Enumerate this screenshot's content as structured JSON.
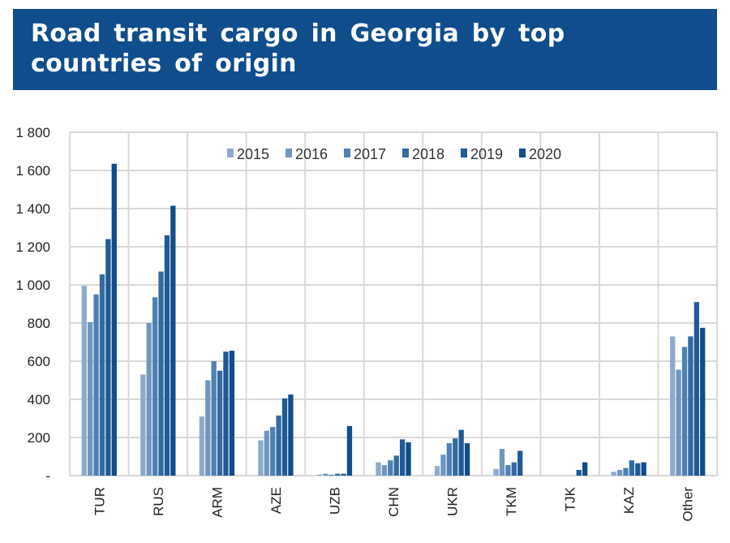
{
  "header": {
    "title_line1": "Road transit cargo in Georgia by top",
    "title_line2": "countries of origin"
  },
  "colors": {
    "banner": "#0f4d8c",
    "grid": "#d9d9d9",
    "series": [
      "#8eaacb",
      "#6f96c0",
      "#4f80b3",
      "#336aa0",
      "#1f5a96",
      "#0f4d8c"
    ]
  },
  "chart_data": {
    "type": "bar",
    "title": "Road transit cargo in Georgia by top countries of origin",
    "xlabel": "",
    "ylabel": "",
    "ylim": [
      0,
      1800
    ],
    "yticks": [
      0,
      200,
      400,
      600,
      800,
      1000,
      1200,
      1400,
      1600,
      1800
    ],
    "ytick_labels": [
      "-",
      "200",
      "400",
      "600",
      "800",
      "1 000",
      "1 200",
      "1 400",
      "1 600",
      "1 800"
    ],
    "grid": true,
    "legend_position": "top",
    "categories": [
      "TUR",
      "RUS",
      "ARM",
      "AZE",
      "UZB",
      "CHN",
      "UKR",
      "TKM",
      "TJK",
      "KAZ",
      "Other"
    ],
    "series": [
      {
        "name": "2015",
        "values": [
          995,
          530,
          310,
          185,
          5,
          70,
          50,
          35,
          0,
          20,
          730
        ]
      },
      {
        "name": "2016",
        "values": [
          805,
          800,
          500,
          235,
          10,
          55,
          110,
          140,
          0,
          30,
          555
        ]
      },
      {
        "name": "2017",
        "values": [
          950,
          935,
          600,
          255,
          5,
          80,
          170,
          55,
          0,
          40,
          675
        ]
      },
      {
        "name": "2018",
        "values": [
          1055,
          1070,
          550,
          315,
          10,
          105,
          195,
          70,
          0,
          80,
          730
        ]
      },
      {
        "name": "2019",
        "values": [
          1240,
          1260,
          650,
          405,
          10,
          190,
          240,
          130,
          30,
          65,
          910
        ]
      },
      {
        "name": "2020",
        "values": [
          1635,
          1415,
          655,
          425,
          260,
          175,
          170,
          0,
          70,
          70,
          775
        ]
      }
    ]
  }
}
